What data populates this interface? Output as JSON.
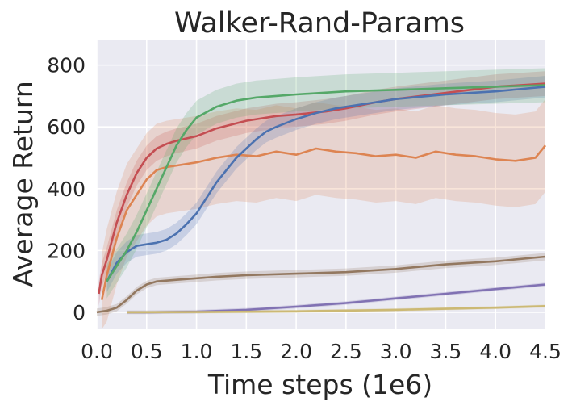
{
  "chart_data": {
    "type": "line",
    "title": "Walker-Rand-Params",
    "xlabel": "Time steps (1e6)",
    "ylabel": "Average Return",
    "xlim": [
      0,
      4.5
    ],
    "ylim": [
      -55,
      880
    ],
    "xticks": [
      "0.0",
      "0.5",
      "1.0",
      "1.5",
      "2.0",
      "2.5",
      "3.0",
      "3.5",
      "4.0",
      "4.5"
    ],
    "yticks": [
      "0",
      "200",
      "400",
      "600",
      "800"
    ],
    "grid": true,
    "background": "#eaeaf2",
    "series": [
      {
        "color": "#c44e52",
        "x": [
          0.02,
          0.05,
          0.1,
          0.15,
          0.2,
          0.3,
          0.4,
          0.5,
          0.6,
          0.7,
          0.8,
          1.0,
          1.2,
          1.5,
          1.8,
          2.0,
          2.3,
          2.5,
          2.8,
          3.0,
          3.5,
          4.0,
          4.5
        ],
        "y": [
          60,
          120,
          170,
          230,
          290,
          380,
          450,
          500,
          530,
          545,
          555,
          570,
          595,
          620,
          635,
          640,
          650,
          660,
          680,
          690,
          710,
          730,
          740
        ],
        "band": 40
      },
      {
        "color": "#dd8452",
        "x": [
          0.05,
          0.1,
          0.15,
          0.2,
          0.3,
          0.4,
          0.5,
          0.6,
          0.7,
          0.8,
          1.0,
          1.2,
          1.4,
          1.6,
          1.8,
          2.0,
          2.2,
          2.4,
          2.6,
          2.8,
          3.0,
          3.2,
          3.4,
          3.6,
          3.8,
          4.0,
          4.2,
          4.4,
          4.5
        ],
        "y": [
          40,
          120,
          180,
          240,
          330,
          380,
          430,
          460,
          470,
          475,
          485,
          500,
          510,
          505,
          520,
          510,
          530,
          520,
          515,
          505,
          510,
          500,
          520,
          510,
          505,
          495,
          490,
          500,
          540
        ],
        "band": 150
      },
      {
        "color": "#4c72b0",
        "x": [
          0.1,
          0.2,
          0.3,
          0.4,
          0.5,
          0.6,
          0.7,
          0.8,
          0.9,
          1.0,
          1.1,
          1.2,
          1.3,
          1.4,
          1.5,
          1.6,
          1.7,
          1.8,
          2.0,
          2.2,
          2.4,
          2.6,
          2.8,
          3.0,
          3.5,
          4.0,
          4.5
        ],
        "y": [
          100,
          160,
          195,
          215,
          220,
          225,
          235,
          255,
          285,
          320,
          370,
          420,
          460,
          500,
          530,
          560,
          585,
          600,
          625,
          645,
          660,
          670,
          680,
          690,
          705,
          715,
          730
        ],
        "band": 35
      },
      {
        "color": "#55a868",
        "x": [
          0.1,
          0.2,
          0.3,
          0.4,
          0.5,
          0.6,
          0.7,
          0.8,
          0.9,
          1.0,
          1.2,
          1.4,
          1.6,
          1.8,
          2.0,
          2.5,
          3.0,
          3.5,
          4.0,
          4.5
        ],
        "y": [
          100,
          150,
          200,
          260,
          330,
          400,
          470,
          540,
          590,
          630,
          665,
          685,
          695,
          700,
          705,
          715,
          720,
          725,
          730,
          735
        ],
        "band": 55
      },
      {
        "color": "#937860",
        "x": [
          0.0,
          0.1,
          0.2,
          0.3,
          0.4,
          0.5,
          0.6,
          0.8,
          1.0,
          1.2,
          1.5,
          2.0,
          2.5,
          3.0,
          3.5,
          4.0,
          4.5
        ],
        "y": [
          0,
          5,
          15,
          40,
          70,
          90,
          100,
          105,
          110,
          115,
          120,
          125,
          130,
          140,
          155,
          165,
          180
        ],
        "band": 12
      },
      {
        "color": "#8172b3",
        "x": [
          0.3,
          0.5,
          1.0,
          1.5,
          2.0,
          2.5,
          3.0,
          3.5,
          4.0,
          4.5
        ],
        "y": [
          0,
          0,
          2,
          8,
          18,
          30,
          45,
          60,
          75,
          90
        ],
        "band": 6
      },
      {
        "color": "#ccb974",
        "x": [
          0.3,
          1.0,
          2.0,
          3.0,
          4.0,
          4.5
        ],
        "y": [
          0,
          1,
          3,
          8,
          15,
          20
        ],
        "band": 5
      }
    ]
  }
}
